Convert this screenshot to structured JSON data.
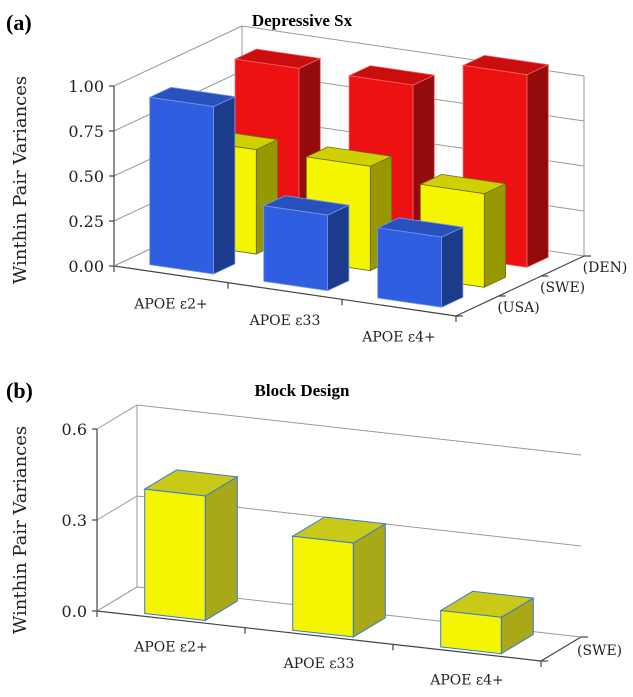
{
  "chart_data": [
    {
      "panel": "(a)",
      "type": "bar",
      "title": "Depressive Sx",
      "ylabel": "Winthin Pair Variances",
      "categories": [
        "APOE ε2+",
        "APOE ε33",
        "APOE ε4+"
      ],
      "yticks": [
        "0.00",
        "0.25",
        "0.50",
        "0.75",
        "1.00"
      ],
      "ylim": [
        0,
        1
      ],
      "series": [
        {
          "name": "(USA)",
          "color": "#2f5fe0",
          "values": [
            0.93,
            0.42,
            0.39
          ]
        },
        {
          "name": "(SWE)",
          "color": "#f5f500",
          "values": [
            0.58,
            0.58,
            0.52
          ]
        },
        {
          "name": "(DEN)",
          "color": "#ee1111",
          "values": [
            0.92,
            0.92,
            1.07
          ]
        }
      ]
    },
    {
      "panel": "(b)",
      "type": "bar",
      "title": "Block Design",
      "ylabel": "Winthin Pair Variances",
      "categories": [
        "APOE ε2+",
        "APOE ε33",
        "APOE ε4+"
      ],
      "yticks": [
        "0.0",
        "0.3",
        "0.6"
      ],
      "ylim": [
        0,
        0.6
      ],
      "series": [
        {
          "name": "(SWE)",
          "color": "#f5f500",
          "values": [
            0.41,
            0.31,
            0.12
          ]
        }
      ]
    }
  ]
}
